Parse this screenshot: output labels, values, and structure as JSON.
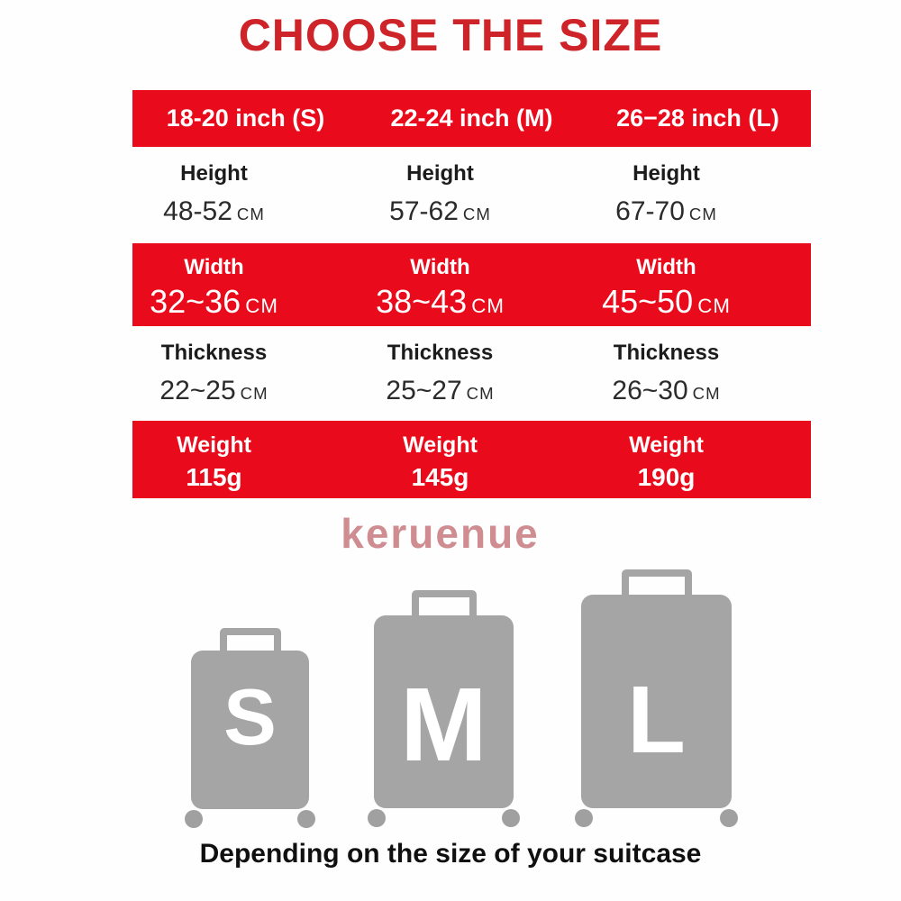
{
  "title": "CHOOSE THE SIZE",
  "caption": "Depending on the size of your suitcase",
  "watermark_text": "keruenue",
  "colors": {
    "red": "#e90b1b",
    "title_red": "#cd2329",
    "suitcase_gray": "#a5a5a5",
    "wheel_gray": "#a0a0a0"
  },
  "table": {
    "header": [
      "18-20 inch (S)",
      "22-24 inch (M)",
      "26−28 inch (L)"
    ],
    "rows": [
      {
        "label": "Height",
        "values": [
          "48-52",
          "57-62",
          "67-70"
        ],
        "unit": "CM"
      },
      {
        "label": "Width",
        "values": [
          "32~36",
          "38~43",
          "45~50"
        ],
        "unit": "CM"
      },
      {
        "label": "Thickness",
        "values": [
          "22~25",
          "25~27",
          "26~30"
        ],
        "unit": "CM"
      },
      {
        "label": "Weight",
        "values": [
          "115g",
          "145g",
          "190g"
        ],
        "unit": ""
      }
    ]
  },
  "suitcases": [
    {
      "letter": "S"
    },
    {
      "letter": "M"
    },
    {
      "letter": "L"
    }
  ],
  "chart_data": {
    "type": "table",
    "title": "CHOOSE THE SIZE",
    "columns": [
      "18-20 inch (S)",
      "22-24 inch (M)",
      "26−28 inch (L)"
    ],
    "rows": [
      {
        "label": "Height",
        "values": [
          "48-52 CM",
          "57-62 CM",
          "67-70 CM"
        ]
      },
      {
        "label": "Width",
        "values": [
          "32~36 CM",
          "38~43 CM",
          "45~50 CM"
        ]
      },
      {
        "label": "Thickness",
        "values": [
          "22~25 CM",
          "25~27 CM",
          "26~30 CM"
        ]
      },
      {
        "label": "Weight",
        "values": [
          "115g",
          "145g",
          "190g"
        ]
      }
    ],
    "caption": "Depending on the size of your suitcase",
    "sizes_illustrated": [
      "S",
      "M",
      "L"
    ]
  }
}
